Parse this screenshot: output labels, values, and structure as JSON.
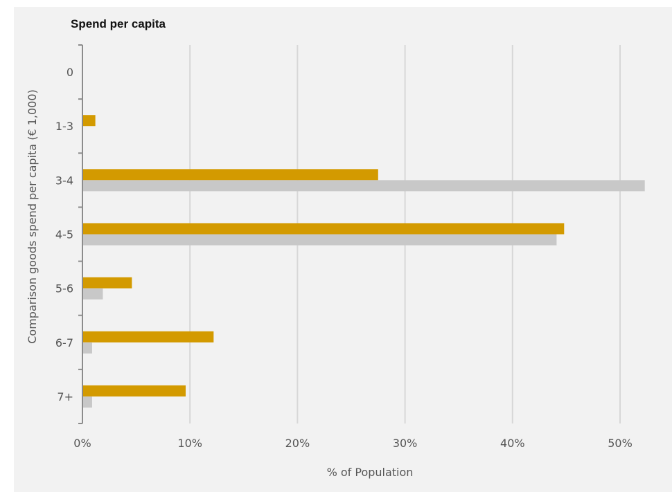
{
  "chart_data": {
    "type": "bar",
    "orientation": "horizontal",
    "title": "Spend per capita",
    "xlabel": "% of Population",
    "ylabel": "Comparison goods spend per capita (€ 1,000)",
    "categories": [
      "0",
      "1-3",
      "3-4",
      "4-5",
      "5-6",
      "6-7",
      "7+"
    ],
    "series": [
      {
        "color": "#d39a00",
        "values": [
          0,
          1.2,
          27.5,
          44.8,
          4.6,
          12.2,
          9.6
        ]
      },
      {
        "color": "#c8c8c8",
        "values": [
          0,
          0,
          52.3,
          44.1,
          1.9,
          0.9,
          0.9
        ]
      }
    ],
    "xlim": [
      0,
      52.5
    ],
    "xticks": [
      0,
      10,
      20,
      30,
      40,
      50
    ],
    "xtick_labels": [
      "0%",
      "10%",
      "20%",
      "30%",
      "40%",
      "50%"
    ],
    "grid": "vertical",
    "legend": "none"
  }
}
